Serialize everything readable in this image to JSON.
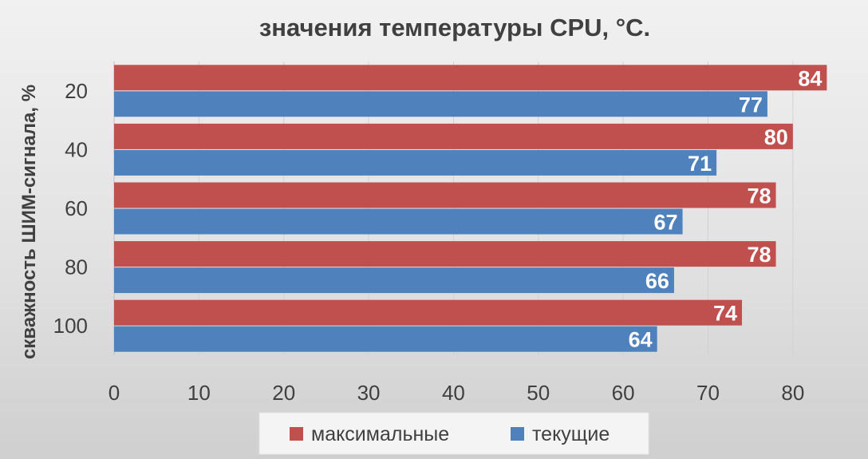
{
  "chart_data": {
    "type": "bar",
    "orientation": "horizontal",
    "title": "значения температуры CPU, °C.",
    "ylabel": "скважность ШИМ-сигнала, %",
    "xlabel": "",
    "categories": [
      "20",
      "40",
      "60",
      "80",
      "100"
    ],
    "series": [
      {
        "name": "максимальные",
        "color": "#c0504d",
        "values": [
          84,
          80,
          78,
          78,
          74
        ]
      },
      {
        "name": "текущие",
        "color": "#4f81bd",
        "values": [
          77,
          71,
          67,
          66,
          64
        ]
      }
    ],
    "xlim": [
      0,
      85
    ],
    "xticks": [
      0,
      10,
      20,
      30,
      40,
      50,
      60,
      70,
      80
    ],
    "grid": true,
    "data_labels": true,
    "legend_position": "bottom"
  }
}
